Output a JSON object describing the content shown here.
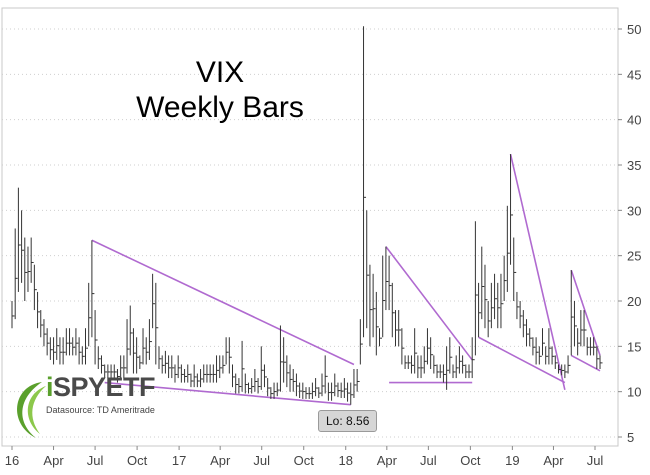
{
  "chart_data": {
    "type": "ohlc",
    "title": "VIX",
    "subtitle": "Weekly Bars",
    "y_axis": {
      "side": "right",
      "ylim": [
        5,
        52
      ],
      "ticks": [
        5,
        10,
        15,
        20,
        25,
        30,
        35,
        40,
        45,
        50
      ]
    },
    "x_axis": {
      "start": "2016-01-01",
      "end": "2019-07-31",
      "tick_labels": [
        {
          "label": "16",
          "date": "2016-01-01"
        },
        {
          "label": "Apr",
          "date": "2016-04-01"
        },
        {
          "label": "Jul",
          "date": "2016-07-01"
        },
        {
          "label": "Oct",
          "date": "2016-10-01"
        },
        {
          "label": "17",
          "date": "2017-01-01"
        },
        {
          "label": "Apr",
          "date": "2017-04-01"
        },
        {
          "label": "Jul",
          "date": "2017-07-01"
        },
        {
          "label": "Oct",
          "date": "2017-10-01"
        },
        {
          "label": "18",
          "date": "2018-01-01"
        },
        {
          "label": "Apr",
          "date": "2018-04-01"
        },
        {
          "label": "Jul",
          "date": "2018-07-01"
        },
        {
          "label": "Oct",
          "date": "2018-10-01"
        },
        {
          "label": "19",
          "date": "2019-01-01"
        },
        {
          "label": "Apr",
          "date": "2019-04-01"
        },
        {
          "label": "Jul",
          "date": "2019-07-01"
        }
      ]
    },
    "bar_color": "#333333",
    "weekly_bars": [
      {
        "date": "2016-01-01",
        "high": 20,
        "low": 17
      },
      {
        "date": "2016-01-08",
        "high": 28,
        "low": 18
      },
      {
        "date": "2016-01-15",
        "high": 32.5,
        "low": 21
      },
      {
        "date": "2016-01-22",
        "high": 30,
        "low": 22
      },
      {
        "date": "2016-01-29",
        "high": 27,
        "low": 20
      },
      {
        "date": "2016-02-05",
        "high": 26,
        "low": 21
      },
      {
        "date": "2016-02-12",
        "high": 27,
        "low": 22
      },
      {
        "date": "2016-02-19",
        "high": 24,
        "low": 19
      },
      {
        "date": "2016-02-26",
        "high": 21,
        "low": 17
      },
      {
        "date": "2016-03-04",
        "high": 19,
        "low": 16
      },
      {
        "date": "2016-03-11",
        "high": 18,
        "low": 15
      },
      {
        "date": "2016-03-18",
        "high": 17,
        "low": 14
      },
      {
        "date": "2016-03-25",
        "high": 16,
        "low": 13.5
      },
      {
        "date": "2016-04-01",
        "high": 16,
        "low": 13
      },
      {
        "date": "2016-04-08",
        "high": 17,
        "low": 13.5
      },
      {
        "date": "2016-04-15",
        "high": 16,
        "low": 13
      },
      {
        "date": "2016-04-22",
        "high": 16,
        "low": 13
      },
      {
        "date": "2016-04-29",
        "high": 17,
        "low": 14
      },
      {
        "date": "2016-05-06",
        "high": 17,
        "low": 14
      },
      {
        "date": "2016-05-13",
        "high": 16,
        "low": 14
      },
      {
        "date": "2016-05-20",
        "high": 17,
        "low": 14
      },
      {
        "date": "2016-05-27",
        "high": 16,
        "low": 13
      },
      {
        "date": "2016-06-03",
        "high": 15,
        "low": 13
      },
      {
        "date": "2016-06-10",
        "high": 17,
        "low": 13
      },
      {
        "date": "2016-06-17",
        "high": 22,
        "low": 15
      },
      {
        "date": "2016-06-24",
        "high": 26.7,
        "low": 16
      },
      {
        "date": "2016-07-01",
        "high": 19,
        "low": 13
      },
      {
        "date": "2016-07-08",
        "high": 15,
        "low": 12.5
      },
      {
        "date": "2016-07-15",
        "high": 14,
        "low": 12
      },
      {
        "date": "2016-07-22",
        "high": 13,
        "low": 11.5
      },
      {
        "date": "2016-07-29",
        "high": 13,
        "low": 11.5
      },
      {
        "date": "2016-08-05",
        "high": 13,
        "low": 11.5
      },
      {
        "date": "2016-08-12",
        "high": 13,
        "low": 11.5
      },
      {
        "date": "2016-08-19",
        "high": 12.5,
        "low": 11
      },
      {
        "date": "2016-08-26",
        "high": 14,
        "low": 11.5
      },
      {
        "date": "2016-09-02",
        "high": 14,
        "low": 11.5
      },
      {
        "date": "2016-09-09",
        "high": 18,
        "low": 12
      },
      {
        "date": "2016-09-16",
        "high": 19.5,
        "low": 14
      },
      {
        "date": "2016-09-23",
        "high": 17,
        "low": 12
      },
      {
        "date": "2016-09-30",
        "high": 16,
        "low": 12
      },
      {
        "date": "2016-10-07",
        "high": 14,
        "low": 12.5
      },
      {
        "date": "2016-10-14",
        "high": 17,
        "low": 13
      },
      {
        "date": "2016-10-21",
        "high": 16,
        "low": 13
      },
      {
        "date": "2016-10-28",
        "high": 18,
        "low": 13.5
      },
      {
        "date": "2016-11-04",
        "high": 23,
        "low": 17
      },
      {
        "date": "2016-11-11",
        "high": 22,
        "low": 13
      },
      {
        "date": "2016-11-18",
        "high": 15,
        "low": 12.5
      },
      {
        "date": "2016-11-25",
        "high": 14,
        "low": 12
      },
      {
        "date": "2016-12-02",
        "high": 14.5,
        "low": 12
      },
      {
        "date": "2016-12-09",
        "high": 14,
        "low": 11.5
      },
      {
        "date": "2016-12-16",
        "high": 14,
        "low": 11.5
      },
      {
        "date": "2016-12-23",
        "high": 13,
        "low": 11
      },
      {
        "date": "2016-12-30",
        "high": 14,
        "low": 11.5
      },
      {
        "date": "2017-01-06",
        "high": 13,
        "low": 11
      },
      {
        "date": "2017-01-13",
        "high": 12.5,
        "low": 11
      },
      {
        "date": "2017-01-20",
        "high": 13,
        "low": 11
      },
      {
        "date": "2017-01-27",
        "high": 12,
        "low": 10.5
      },
      {
        "date": "2017-02-03",
        "high": 13,
        "low": 10.5
      },
      {
        "date": "2017-02-10",
        "high": 12,
        "low": 10.5
      },
      {
        "date": "2017-02-17",
        "high": 12.5,
        "low": 10.5
      },
      {
        "date": "2017-02-24",
        "high": 13,
        "low": 11
      },
      {
        "date": "2017-03-03",
        "high": 13,
        "low": 11
      },
      {
        "date": "2017-03-10",
        "high": 13,
        "low": 11
      },
      {
        "date": "2017-03-17",
        "high": 13,
        "low": 11
      },
      {
        "date": "2017-03-24",
        "high": 14,
        "low": 11
      },
      {
        "date": "2017-03-31",
        "high": 14,
        "low": 11.5
      },
      {
        "date": "2017-04-07",
        "high": 14,
        "low": 12
      },
      {
        "date": "2017-04-14",
        "high": 16,
        "low": 13
      },
      {
        "date": "2017-04-21",
        "high": 16,
        "low": 12
      },
      {
        "date": "2017-04-28",
        "high": 13,
        "low": 10.5
      },
      {
        "date": "2017-05-05",
        "high": 12,
        "low": 9.8
      },
      {
        "date": "2017-05-12",
        "high": 11.5,
        "low": 9.8
      },
      {
        "date": "2017-05-19",
        "high": 15.6,
        "low": 10
      },
      {
        "date": "2017-05-26",
        "high": 12,
        "low": 9.8
      },
      {
        "date": "2017-06-02",
        "high": 11,
        "low": 9.8
      },
      {
        "date": "2017-06-09",
        "high": 11.5,
        "low": 9.8
      },
      {
        "date": "2017-06-16",
        "high": 12.5,
        "low": 10
      },
      {
        "date": "2017-06-23",
        "high": 11.5,
        "low": 9.8
      },
      {
        "date": "2017-06-30",
        "high": 15,
        "low": 10.2
      },
      {
        "date": "2017-07-07",
        "high": 13,
        "low": 10.5
      },
      {
        "date": "2017-07-14",
        "high": 11.5,
        "low": 9.5
      },
      {
        "date": "2017-07-21",
        "high": 10.5,
        "low": 9.2
      },
      {
        "date": "2017-07-28",
        "high": 11,
        "low": 9.2
      },
      {
        "date": "2017-08-04",
        "high": 11,
        "low": 9.5
      },
      {
        "date": "2017-08-11",
        "high": 17.3,
        "low": 10
      },
      {
        "date": "2017-08-18",
        "high": 16,
        "low": 11
      },
      {
        "date": "2017-08-25",
        "high": 14,
        "low": 10.5
      },
      {
        "date": "2017-09-01",
        "high": 13,
        "low": 10
      },
      {
        "date": "2017-09-08",
        "high": 12.5,
        "low": 10
      },
      {
        "date": "2017-09-15",
        "high": 12,
        "low": 9.5
      },
      {
        "date": "2017-09-22",
        "high": 11,
        "low": 9.3
      },
      {
        "date": "2017-09-29",
        "high": 11,
        "low": 9.2
      },
      {
        "date": "2017-10-06",
        "high": 10.5,
        "low": 9.2
      },
      {
        "date": "2017-10-13",
        "high": 10.5,
        "low": 9.2
      },
      {
        "date": "2017-10-20",
        "high": 11,
        "low": 9.2
      },
      {
        "date": "2017-10-27",
        "high": 11.5,
        "low": 9.5
      },
      {
        "date": "2017-11-03",
        "high": 10.5,
        "low": 9.3
      },
      {
        "date": "2017-11-10",
        "high": 12,
        "low": 9.5
      },
      {
        "date": "2017-11-17",
        "high": 14,
        "low": 9.8
      },
      {
        "date": "2017-11-24",
        "high": 11,
        "low": 9
      },
      {
        "date": "2017-12-01",
        "high": 11,
        "low": 9
      },
      {
        "date": "2017-12-08",
        "high": 12,
        "low": 9.5
      },
      {
        "date": "2017-12-15",
        "high": 11,
        "low": 9.4
      },
      {
        "date": "2017-12-22",
        "high": 11,
        "low": 9.3
      },
      {
        "date": "2017-12-29",
        "high": 11.5,
        "low": 9.3
      },
      {
        "date": "2018-01-05",
        "high": 11,
        "low": 8.9
      },
      {
        "date": "2018-01-12",
        "high": 11,
        "low": 8.56
      },
      {
        "date": "2018-01-19",
        "high": 12.5,
        "low": 9.3
      },
      {
        "date": "2018-01-26",
        "high": 12.5,
        "low": 10
      },
      {
        "date": "2018-02-02",
        "high": 18,
        "low": 13
      },
      {
        "date": "2018-02-09",
        "high": 50.3,
        "low": 16
      },
      {
        "date": "2018-02-16",
        "high": 30,
        "low": 17
      },
      {
        "date": "2018-02-23",
        "high": 24,
        "low": 15
      },
      {
        "date": "2018-03-02",
        "high": 23,
        "low": 16
      },
      {
        "date": "2018-03-09",
        "high": 21,
        "low": 14
      },
      {
        "date": "2018-03-16",
        "high": 17,
        "low": 15
      },
      {
        "date": "2018-03-23",
        "high": 25,
        "low": 16
      },
      {
        "date": "2018-03-30",
        "high": 26,
        "low": 19
      },
      {
        "date": "2018-04-06",
        "high": 25,
        "low": 19
      },
      {
        "date": "2018-04-13",
        "high": 22,
        "low": 16
      },
      {
        "date": "2018-04-20",
        "high": 19,
        "low": 15
      },
      {
        "date": "2018-04-27",
        "high": 19,
        "low": 15
      },
      {
        "date": "2018-05-04",
        "high": 17,
        "low": 13
      },
      {
        "date": "2018-05-11",
        "high": 14,
        "low": 12.5
      },
      {
        "date": "2018-05-18",
        "high": 14,
        "low": 12.5
      },
      {
        "date": "2018-05-25",
        "high": 14,
        "low": 12
      },
      {
        "date": "2018-06-01",
        "high": 17,
        "low": 12
      },
      {
        "date": "2018-06-08",
        "high": 14,
        "low": 11.5
      },
      {
        "date": "2018-06-15",
        "high": 14,
        "low": 11.5
      },
      {
        "date": "2018-06-22",
        "high": 15,
        "low": 12
      },
      {
        "date": "2018-06-29",
        "high": 17,
        "low": 13
      },
      {
        "date": "2018-07-06",
        "high": 16,
        "low": 12.5
      },
      {
        "date": "2018-07-13",
        "high": 14,
        "low": 12
      },
      {
        "date": "2018-07-20",
        "high": 13,
        "low": 11.5
      },
      {
        "date": "2018-07-27",
        "high": 13,
        "low": 11.5
      },
      {
        "date": "2018-08-03",
        "high": 13,
        "low": 11
      },
      {
        "date": "2018-08-10",
        "high": 15,
        "low": 10.2
      },
      {
        "date": "2018-08-17",
        "high": 16,
        "low": 12
      },
      {
        "date": "2018-08-24",
        "high": 13,
        "low": 11.5
      },
      {
        "date": "2018-08-31",
        "high": 14,
        "low": 11.5
      },
      {
        "date": "2018-09-07",
        "high": 15,
        "low": 12
      },
      {
        "date": "2018-09-14",
        "high": 14,
        "low": 12
      },
      {
        "date": "2018-09-21",
        "high": 13,
        "low": 11.5
      },
      {
        "date": "2018-09-28",
        "high": 13,
        "low": 11.5
      },
      {
        "date": "2018-10-05",
        "high": 16,
        "low": 11.5
      },
      {
        "date": "2018-10-12",
        "high": 28.8,
        "low": 14
      },
      {
        "date": "2018-10-19",
        "high": 22,
        "low": 16
      },
      {
        "date": "2018-10-26",
        "high": 26,
        "low": 18
      },
      {
        "date": "2018-11-02",
        "high": 24,
        "low": 17
      },
      {
        "date": "2018-11-09",
        "high": 20,
        "low": 16
      },
      {
        "date": "2018-11-16",
        "high": 22,
        "low": 17
      },
      {
        "date": "2018-11-23",
        "high": 23,
        "low": 18
      },
      {
        "date": "2018-11-30",
        "high": 22,
        "low": 17
      },
      {
        "date": "2018-12-07",
        "high": 23,
        "low": 17
      },
      {
        "date": "2018-12-14",
        "high": 25,
        "low": 20
      },
      {
        "date": "2018-12-21",
        "high": 30.5,
        "low": 21
      },
      {
        "date": "2018-12-28",
        "high": 36.2,
        "low": 24
      },
      {
        "date": "2019-01-04",
        "high": 27,
        "low": 20
      },
      {
        "date": "2019-01-11",
        "high": 21,
        "low": 18
      },
      {
        "date": "2019-01-18",
        "high": 20,
        "low": 17
      },
      {
        "date": "2019-01-25",
        "high": 19,
        "low": 16
      },
      {
        "date": "2019-02-01",
        "high": 18,
        "low": 15
      },
      {
        "date": "2019-02-08",
        "high": 17,
        "low": 15
      },
      {
        "date": "2019-02-15",
        "high": 16,
        "low": 14
      },
      {
        "date": "2019-02-22",
        "high": 16,
        "low": 13
      },
      {
        "date": "2019-03-01",
        "high": 15,
        "low": 13
      },
      {
        "date": "2019-03-08",
        "high": 17,
        "low": 14
      },
      {
        "date": "2019-03-15",
        "high": 15,
        "low": 13
      },
      {
        "date": "2019-03-22",
        "high": 17,
        "low": 13
      },
      {
        "date": "2019-03-29",
        "high": 15,
        "low": 13
      },
      {
        "date": "2019-04-05",
        "high": 14,
        "low": 12.5
      },
      {
        "date": "2019-04-12",
        "high": 13,
        "low": 12
      },
      {
        "date": "2019-04-19",
        "high": 13,
        "low": 11.8
      },
      {
        "date": "2019-04-26",
        "high": 13,
        "low": 11.5
      },
      {
        "date": "2019-05-03",
        "high": 14,
        "low": 12
      },
      {
        "date": "2019-05-10",
        "high": 23.4,
        "low": 14
      },
      {
        "date": "2019-05-17",
        "high": 20,
        "low": 15
      },
      {
        "date": "2019-05-24",
        "high": 17,
        "low": 14
      },
      {
        "date": "2019-05-31",
        "high": 19,
        "low": 15
      },
      {
        "date": "2019-06-07",
        "high": 19,
        "low": 15
      },
      {
        "date": "2019-06-14",
        "high": 16,
        "low": 14
      },
      {
        "date": "2019-06-21",
        "high": 16,
        "low": 14
      },
      {
        "date": "2019-06-28",
        "high": 16,
        "low": 14
      },
      {
        "date": "2019-07-05",
        "high": 15,
        "low": 12.5
      },
      {
        "date": "2019-07-12",
        "high": 14,
        "low": 12.5
      }
    ],
    "trendlines": [
      {
        "color": "#b06ad0",
        "points": [
          {
            "date": "2016-06-24",
            "value": 26.7
          },
          {
            "date": "2018-01-19",
            "value": 13
          }
        ]
      },
      {
        "color": "#b06ad0",
        "points": [
          {
            "date": "2016-07-22",
            "value": 11
          },
          {
            "date": "2018-01-12",
            "value": 8.56
          }
        ]
      },
      {
        "color": "#b06ad0",
        "points": [
          {
            "date": "2018-03-30",
            "value": 26
          },
          {
            "date": "2018-10-05",
            "value": 13.5
          }
        ]
      },
      {
        "color": "#b06ad0",
        "points": [
          {
            "date": "2018-04-06",
            "value": 11
          },
          {
            "date": "2018-10-05",
            "value": 11
          }
        ]
      },
      {
        "color": "#b06ad0",
        "points": [
          {
            "date": "2018-12-28",
            "value": 36.2
          },
          {
            "date": "2019-04-26",
            "value": 10.2
          }
        ]
      },
      {
        "color": "#b06ad0",
        "points": [
          {
            "date": "2018-10-19",
            "value": 16
          },
          {
            "date": "2019-04-26",
            "value": 11
          }
        ]
      },
      {
        "color": "#b06ad0",
        "points": [
          {
            "date": "2019-05-10",
            "value": 23.4
          },
          {
            "date": "2019-07-12",
            "value": 14
          }
        ]
      },
      {
        "color": "#b06ad0",
        "points": [
          {
            "date": "2019-05-10",
            "value": 14
          },
          {
            "date": "2019-07-12",
            "value": 12.3
          }
        ]
      }
    ],
    "annotation": {
      "text": "Lo: 8.56",
      "date": "2018-01-12",
      "value": 8.56
    },
    "grid": {
      "horizontal": true,
      "style": "dotted",
      "color": "#cfcfcf"
    },
    "logo": {
      "text_prefix": "i",
      "text_main": "SPYETF",
      "source": "Datasource: TD Ameritrade"
    }
  }
}
